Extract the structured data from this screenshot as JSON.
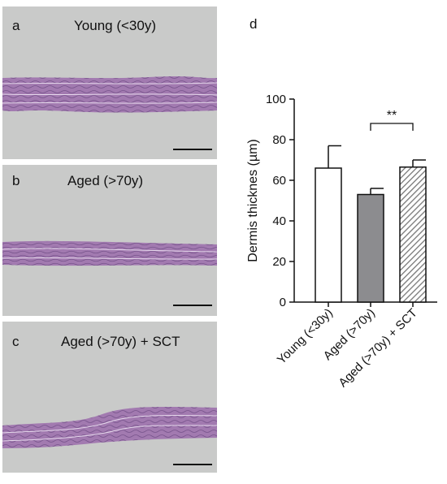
{
  "panels": [
    {
      "label": "a",
      "title": "Young (<30y)"
    },
    {
      "label": "b",
      "title": "Aged (>70y)"
    },
    {
      "label": "c",
      "title": "Aged (>70y) + SCT"
    }
  ],
  "chart_label": "d",
  "chart_data": {
    "type": "bar",
    "categories": [
      "Young (<30y)",
      "Aged (>70y)",
      "Aged (>70y) + SCT"
    ],
    "values": [
      66,
      53,
      66.5
    ],
    "errors": [
      11,
      3,
      3.5
    ],
    "fills": [
      "#ffffff",
      "#8c8c8f",
      "hatched"
    ],
    "ylabel": "Dermis thicknes (µm)",
    "ylim": [
      0,
      100
    ],
    "yticks": [
      0,
      20,
      40,
      60,
      80,
      100
    ],
    "significance": {
      "between": [
        1,
        2
      ],
      "label": "**"
    }
  },
  "colors": {
    "tissue": "#a27ab0",
    "tissue_dark": "#6c4a82",
    "background": "#c9cac9",
    "bar_gray": "#8c8c8f"
  }
}
